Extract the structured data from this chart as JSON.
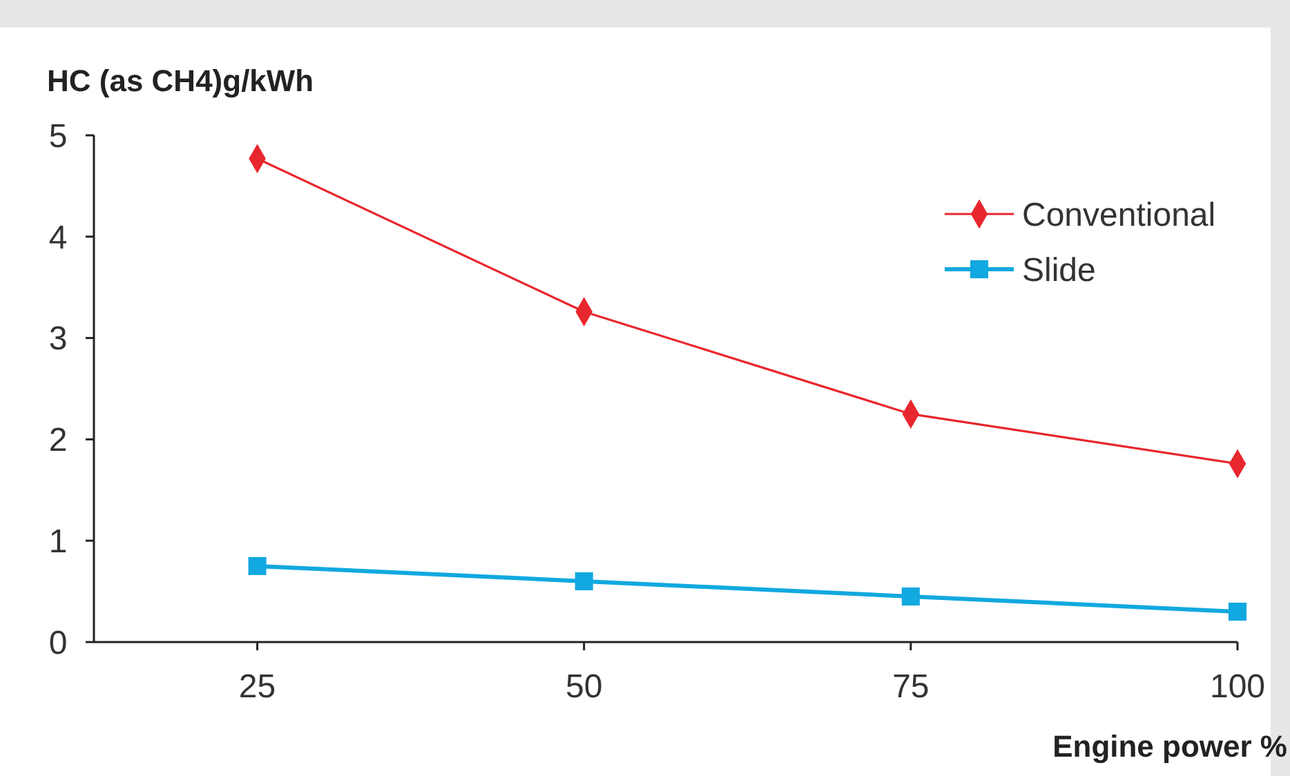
{
  "chart_data": {
    "type": "line",
    "ylabel": "HC (as CH4)g/kWh",
    "xlabel": "Engine power %",
    "x": [
      25,
      50,
      75,
      100
    ],
    "series": [
      {
        "name": "Conventional",
        "color": "#e8262d",
        "values": [
          4.77,
          3.26,
          2.25,
          1.76
        ],
        "marker": "diamond"
      },
      {
        "name": "Slide",
        "color": "#12a8e0",
        "values": [
          0.75,
          0.6,
          0.45,
          0.3
        ],
        "marker": "square"
      }
    ],
    "xlim": [
      12.5,
      100
    ],
    "xticks": [
      25,
      50,
      75,
      100
    ],
    "ylim": [
      0,
      5
    ],
    "yticks": [
      0,
      1,
      2,
      3,
      4,
      5
    ],
    "grid": false,
    "legend": "top right",
    "line_style": "solid"
  }
}
